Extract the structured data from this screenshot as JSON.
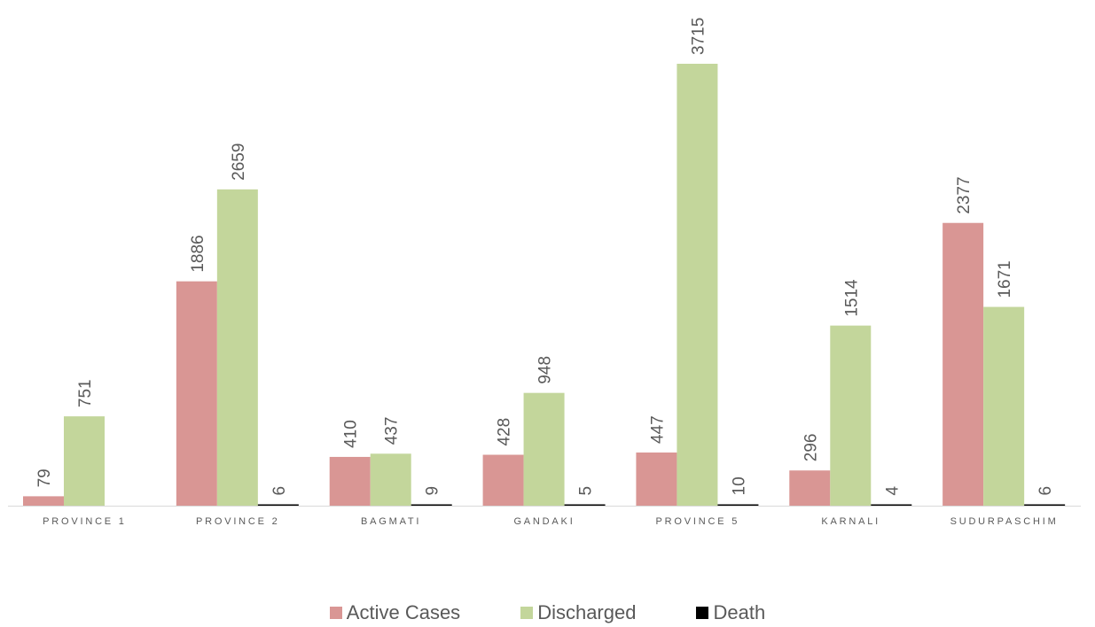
{
  "chart_data": {
    "type": "bar",
    "title": "",
    "xlabel": "",
    "ylabel": "",
    "categories": [
      "PROVINCE 1",
      "PROVINCE 2",
      "BAGMATI",
      "GANDAKI",
      "PROVINCE 5",
      "KARNALI",
      "SUDURPASCHIM"
    ],
    "series": [
      {
        "name": "Active Cases",
        "color": "#d99694",
        "values": [
          79,
          1886,
          410,
          428,
          447,
          296,
          2377
        ]
      },
      {
        "name": "Discharged",
        "color": "#c3d69b",
        "values": [
          751,
          2659,
          437,
          948,
          3715,
          1514,
          1671
        ]
      },
      {
        "name": "Death",
        "color": "#000000",
        "values": [
          null,
          6,
          9,
          5,
          10,
          4,
          6
        ]
      }
    ],
    "data_labels": [
      [
        "79",
        "1886",
        "410",
        "428",
        "447",
        "296",
        "2377"
      ],
      [
        "751",
        "2659",
        "437",
        "948",
        "3715",
        "1514",
        "1671"
      ],
      [
        "",
        "6",
        "9",
        "5",
        "10",
        "4",
        "6"
      ]
    ],
    "ylim": [
      0,
      3715
    ],
    "grid": false,
    "legend_position": "bottom"
  },
  "axis_color": "#d9d9d9",
  "label_color": "#595959"
}
